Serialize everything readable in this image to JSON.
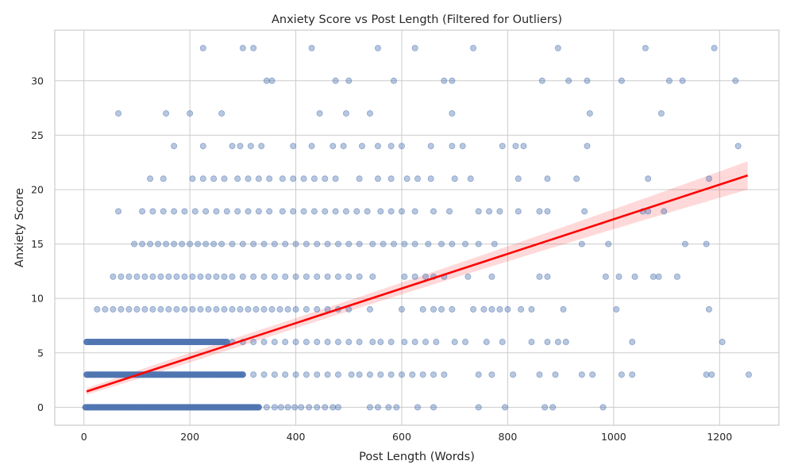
{
  "chart_data": {
    "type": "scatter",
    "title": "Anxiety Score vs Post Length (Filtered for Outliers)",
    "xlabel": "Post Length (Words)",
    "ylabel": "Anxiety Score",
    "xlim": [
      -55,
      1312
    ],
    "ylim": [
      -1.65,
      34.65
    ],
    "xticks": [
      0,
      200,
      400,
      600,
      800,
      1000,
      1200
    ],
    "yticks": [
      0,
      5,
      10,
      15,
      20,
      25,
      30
    ],
    "grid": true,
    "point_color": "#4c72b0",
    "point_alpha": 0.4,
    "regression": {
      "color": "#ff0000",
      "x_range": [
        5,
        1253
      ],
      "y_at_start": 1.45,
      "y_at_end": 21.3,
      "ci_halfwidth_at_start": 0.3,
      "ci_halfwidth_mid": 0.45,
      "ci_halfwidth_at_end": 1.3,
      "ci_color": "#ff0000",
      "ci_alpha": 0.15
    },
    "dense_bands": [
      {
        "y": 0,
        "x_start": 3,
        "x_end": 330
      },
      {
        "y": 3,
        "x_start": 5,
        "x_end": 300
      },
      {
        "y": 6,
        "x_start": 5,
        "x_end": 270
      }
    ],
    "points": [
      [
        330,
        0
      ],
      [
        345,
        0
      ],
      [
        360,
        0
      ],
      [
        372,
        0
      ],
      [
        385,
        0
      ],
      [
        398,
        0
      ],
      [
        410,
        0
      ],
      [
        425,
        0
      ],
      [
        440,
        0
      ],
      [
        455,
        0
      ],
      [
        470,
        0
      ],
      [
        480,
        0
      ],
      [
        540,
        0
      ],
      [
        555,
        0
      ],
      [
        575,
        0
      ],
      [
        590,
        0
      ],
      [
        630,
        0
      ],
      [
        660,
        0
      ],
      [
        745,
        0
      ],
      [
        795,
        0
      ],
      [
        870,
        0
      ],
      [
        885,
        0
      ],
      [
        980,
        0
      ],
      [
        300,
        3
      ],
      [
        320,
        3
      ],
      [
        340,
        3
      ],
      [
        360,
        3
      ],
      [
        380,
        3
      ],
      [
        400,
        3
      ],
      [
        420,
        3
      ],
      [
        440,
        3
      ],
      [
        460,
        3
      ],
      [
        480,
        3
      ],
      [
        505,
        3
      ],
      [
        520,
        3
      ],
      [
        540,
        3
      ],
      [
        560,
        3
      ],
      [
        580,
        3
      ],
      [
        600,
        3
      ],
      [
        620,
        3
      ],
      [
        640,
        3
      ],
      [
        660,
        3
      ],
      [
        680,
        3
      ],
      [
        745,
        3
      ],
      [
        770,
        3
      ],
      [
        810,
        3
      ],
      [
        860,
        3
      ],
      [
        890,
        3
      ],
      [
        940,
        3
      ],
      [
        960,
        3
      ],
      [
        1015,
        3
      ],
      [
        1035,
        3
      ],
      [
        1175,
        3
      ],
      [
        1185,
        3
      ],
      [
        1255,
        3
      ],
      [
        280,
        6
      ],
      [
        300,
        6
      ],
      [
        320,
        6
      ],
      [
        340,
        6
      ],
      [
        360,
        6
      ],
      [
        380,
        6
      ],
      [
        400,
        6
      ],
      [
        420,
        6
      ],
      [
        440,
        6
      ],
      [
        460,
        6
      ],
      [
        480,
        6
      ],
      [
        500,
        6
      ],
      [
        520,
        6
      ],
      [
        545,
        6
      ],
      [
        560,
        6
      ],
      [
        580,
        6
      ],
      [
        605,
        6
      ],
      [
        625,
        6
      ],
      [
        645,
        6
      ],
      [
        665,
        6
      ],
      [
        700,
        6
      ],
      [
        720,
        6
      ],
      [
        760,
        6
      ],
      [
        790,
        6
      ],
      [
        845,
        6
      ],
      [
        875,
        6
      ],
      [
        895,
        6
      ],
      [
        910,
        6
      ],
      [
        1035,
        6
      ],
      [
        1205,
        6
      ],
      [
        25,
        9
      ],
      [
        40,
        9
      ],
      [
        55,
        9
      ],
      [
        70,
        9
      ],
      [
        85,
        9
      ],
      [
        100,
        9
      ],
      [
        115,
        9
      ],
      [
        130,
        9
      ],
      [
        145,
        9
      ],
      [
        160,
        9
      ],
      [
        175,
        9
      ],
      [
        190,
        9
      ],
      [
        205,
        9
      ],
      [
        220,
        9
      ],
      [
        235,
        9
      ],
      [
        250,
        9
      ],
      [
        265,
        9
      ],
      [
        280,
        9
      ],
      [
        295,
        9
      ],
      [
        310,
        9
      ],
      [
        325,
        9
      ],
      [
        340,
        9
      ],
      [
        355,
        9
      ],
      [
        370,
        9
      ],
      [
        385,
        9
      ],
      [
        400,
        9
      ],
      [
        420,
        9
      ],
      [
        440,
        9
      ],
      [
        460,
        9
      ],
      [
        480,
        9
      ],
      [
        500,
        9
      ],
      [
        540,
        9
      ],
      [
        600,
        9
      ],
      [
        640,
        9
      ],
      [
        660,
        9
      ],
      [
        675,
        9
      ],
      [
        695,
        9
      ],
      [
        735,
        9
      ],
      [
        755,
        9
      ],
      [
        770,
        9
      ],
      [
        785,
        9
      ],
      [
        800,
        9
      ],
      [
        825,
        9
      ],
      [
        845,
        9
      ],
      [
        905,
        9
      ],
      [
        1005,
        9
      ],
      [
        1180,
        9
      ],
      [
        55,
        12
      ],
      [
        70,
        12
      ],
      [
        85,
        12
      ],
      [
        100,
        12
      ],
      [
        115,
        12
      ],
      [
        130,
        12
      ],
      [
        145,
        12
      ],
      [
        160,
        12
      ],
      [
        175,
        12
      ],
      [
        190,
        12
      ],
      [
        205,
        12
      ],
      [
        220,
        12
      ],
      [
        235,
        12
      ],
      [
        250,
        12
      ],
      [
        265,
        12
      ],
      [
        280,
        12
      ],
      [
        300,
        12
      ],
      [
        320,
        12
      ],
      [
        340,
        12
      ],
      [
        360,
        12
      ],
      [
        380,
        12
      ],
      [
        400,
        12
      ],
      [
        420,
        12
      ],
      [
        440,
        12
      ],
      [
        460,
        12
      ],
      [
        480,
        12
      ],
      [
        500,
        12
      ],
      [
        520,
        12
      ],
      [
        545,
        12
      ],
      [
        605,
        12
      ],
      [
        625,
        12
      ],
      [
        645,
        12
      ],
      [
        660,
        12
      ],
      [
        680,
        12
      ],
      [
        725,
        12
      ],
      [
        770,
        12
      ],
      [
        860,
        12
      ],
      [
        875,
        12
      ],
      [
        985,
        12
      ],
      [
        1010,
        12
      ],
      [
        1040,
        12
      ],
      [
        1075,
        12
      ],
      [
        1085,
        12
      ],
      [
        1120,
        12
      ],
      [
        95,
        15
      ],
      [
        110,
        15
      ],
      [
        125,
        15
      ],
      [
        140,
        15
      ],
      [
        155,
        15
      ],
      [
        170,
        15
      ],
      [
        185,
        15
      ],
      [
        200,
        15
      ],
      [
        215,
        15
      ],
      [
        230,
        15
      ],
      [
        245,
        15
      ],
      [
        260,
        15
      ],
      [
        280,
        15
      ],
      [
        300,
        15
      ],
      [
        320,
        15
      ],
      [
        340,
        15
      ],
      [
        360,
        15
      ],
      [
        380,
        15
      ],
      [
        400,
        15
      ],
      [
        420,
        15
      ],
      [
        440,
        15
      ],
      [
        460,
        15
      ],
      [
        480,
        15
      ],
      [
        500,
        15
      ],
      [
        520,
        15
      ],
      [
        545,
        15
      ],
      [
        565,
        15
      ],
      [
        585,
        15
      ],
      [
        605,
        15
      ],
      [
        625,
        15
      ],
      [
        650,
        15
      ],
      [
        675,
        15
      ],
      [
        695,
        15
      ],
      [
        720,
        15
      ],
      [
        745,
        15
      ],
      [
        775,
        15
      ],
      [
        940,
        15
      ],
      [
        990,
        15
      ],
      [
        1135,
        15
      ],
      [
        1175,
        15
      ],
      [
        65,
        18
      ],
      [
        110,
        18
      ],
      [
        130,
        18
      ],
      [
        150,
        18
      ],
      [
        170,
        18
      ],
      [
        190,
        18
      ],
      [
        210,
        18
      ],
      [
        230,
        18
      ],
      [
        250,
        18
      ],
      [
        270,
        18
      ],
      [
        290,
        18
      ],
      [
        310,
        18
      ],
      [
        330,
        18
      ],
      [
        350,
        18
      ],
      [
        375,
        18
      ],
      [
        395,
        18
      ],
      [
        415,
        18
      ],
      [
        435,
        18
      ],
      [
        455,
        18
      ],
      [
        475,
        18
      ],
      [
        495,
        18
      ],
      [
        515,
        18
      ],
      [
        535,
        18
      ],
      [
        560,
        18
      ],
      [
        580,
        18
      ],
      [
        600,
        18
      ],
      [
        625,
        18
      ],
      [
        660,
        18
      ],
      [
        690,
        18
      ],
      [
        745,
        18
      ],
      [
        765,
        18
      ],
      [
        785,
        18
      ],
      [
        820,
        18
      ],
      [
        860,
        18
      ],
      [
        875,
        18
      ],
      [
        945,
        18
      ],
      [
        1055,
        18
      ],
      [
        1065,
        18
      ],
      [
        1095,
        18
      ],
      [
        125,
        21
      ],
      [
        150,
        21
      ],
      [
        205,
        21
      ],
      [
        225,
        21
      ],
      [
        245,
        21
      ],
      [
        265,
        21
      ],
      [
        290,
        21
      ],
      [
        310,
        21
      ],
      [
        330,
        21
      ],
      [
        350,
        21
      ],
      [
        375,
        21
      ],
      [
        395,
        21
      ],
      [
        415,
        21
      ],
      [
        435,
        21
      ],
      [
        455,
        21
      ],
      [
        475,
        21
      ],
      [
        520,
        21
      ],
      [
        555,
        21
      ],
      [
        580,
        21
      ],
      [
        610,
        21
      ],
      [
        630,
        21
      ],
      [
        655,
        21
      ],
      [
        700,
        21
      ],
      [
        730,
        21
      ],
      [
        820,
        21
      ],
      [
        875,
        21
      ],
      [
        930,
        21
      ],
      [
        1065,
        21
      ],
      [
        1180,
        21
      ],
      [
        170,
        24
      ],
      [
        225,
        24
      ],
      [
        280,
        24
      ],
      [
        295,
        24
      ],
      [
        315,
        24
      ],
      [
        335,
        24
      ],
      [
        395,
        24
      ],
      [
        430,
        24
      ],
      [
        470,
        24
      ],
      [
        490,
        24
      ],
      [
        525,
        24
      ],
      [
        555,
        24
      ],
      [
        580,
        24
      ],
      [
        600,
        24
      ],
      [
        655,
        24
      ],
      [
        695,
        24
      ],
      [
        715,
        24
      ],
      [
        790,
        24
      ],
      [
        815,
        24
      ],
      [
        830,
        24
      ],
      [
        950,
        24
      ],
      [
        1235,
        24
      ],
      [
        65,
        27
      ],
      [
        155,
        27
      ],
      [
        200,
        27
      ],
      [
        260,
        27
      ],
      [
        445,
        27
      ],
      [
        495,
        27
      ],
      [
        540,
        27
      ],
      [
        695,
        27
      ],
      [
        955,
        27
      ],
      [
        1090,
        27
      ],
      [
        345,
        30
      ],
      [
        355,
        30
      ],
      [
        475,
        30
      ],
      [
        500,
        30
      ],
      [
        585,
        30
      ],
      [
        680,
        30
      ],
      [
        695,
        30
      ],
      [
        865,
        30
      ],
      [
        915,
        30
      ],
      [
        950,
        30
      ],
      [
        1015,
        30
      ],
      [
        1105,
        30
      ],
      [
        1130,
        30
      ],
      [
        1230,
        30
      ],
      [
        225,
        33
      ],
      [
        300,
        33
      ],
      [
        320,
        33
      ],
      [
        430,
        33
      ],
      [
        555,
        33
      ],
      [
        625,
        33
      ],
      [
        735,
        33
      ],
      [
        895,
        33
      ],
      [
        1060,
        33
      ],
      [
        1190,
        33
      ]
    ]
  }
}
